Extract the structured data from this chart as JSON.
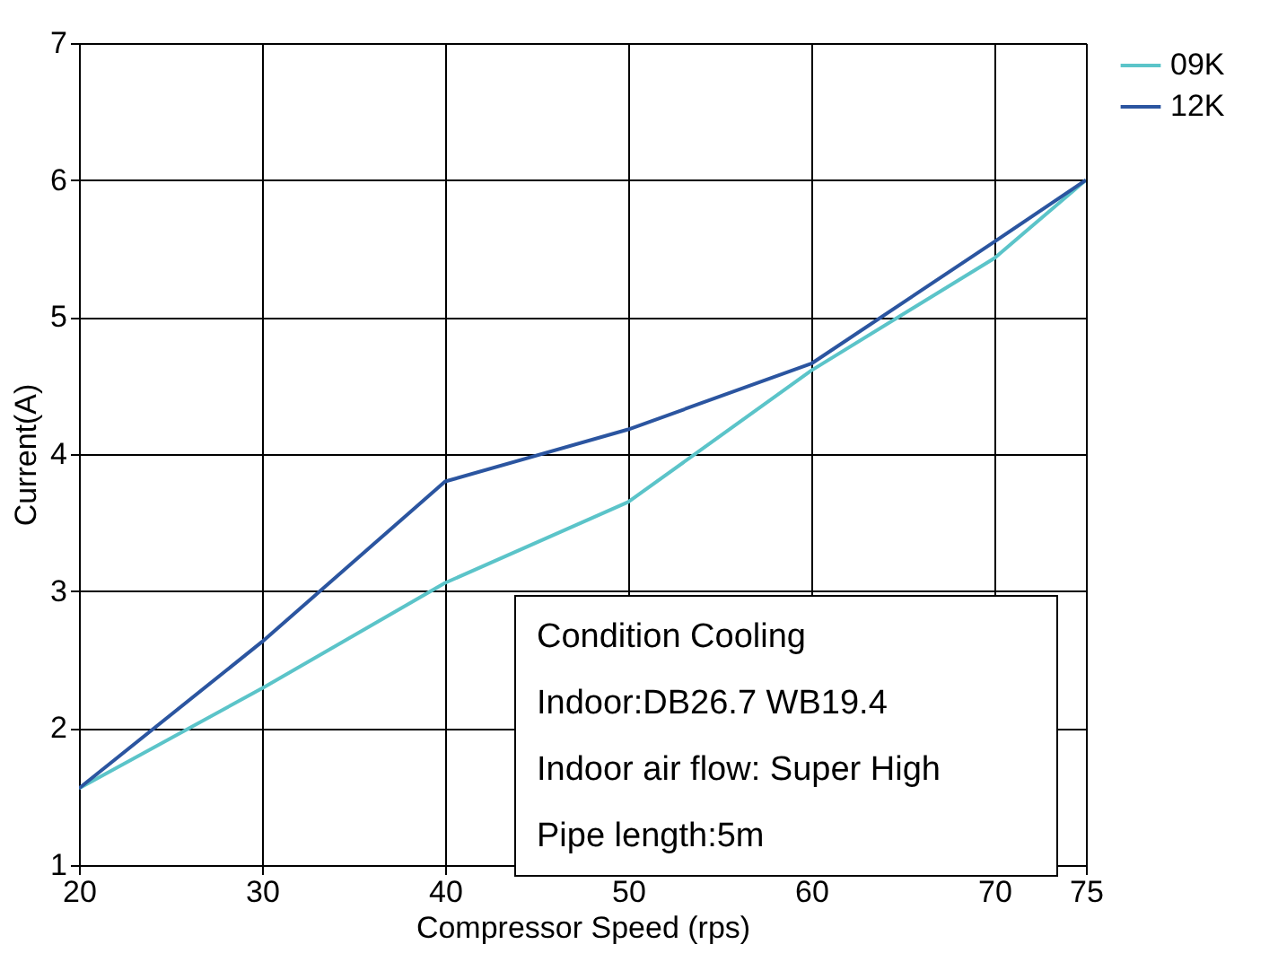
{
  "chart_data": {
    "type": "line",
    "xlabel": "Compressor Speed (rps)",
    "ylabel": "Current(A)",
    "x": [
      20,
      30,
      40,
      50,
      60,
      70,
      75
    ],
    "series": [
      {
        "name": "09K",
        "color": "#5bc4c9",
        "values": [
          1.56,
          2.29,
          3.06,
          3.65,
          4.61,
          5.43,
          6
        ]
      },
      {
        "name": "12K",
        "color": "#2b55a0",
        "values": [
          1.56,
          2.63,
          3.8,
          4.18,
          4.66,
          5.55,
          6
        ]
      }
    ],
    "xlim": [
      20,
      75
    ],
    "xticks": [
      20,
      30,
      40,
      50,
      60,
      70,
      75
    ],
    "ylim": [
      1,
      7
    ],
    "yticks": [
      1,
      2,
      3,
      4,
      5,
      6,
      7
    ],
    "grid": true,
    "legend": "right",
    "marker": "none",
    "line_style": "solid",
    "annotations": [
      "Condition Cooling",
      "Indoor:DB26.7     WB19.4",
      "Indoor air flow: Super High",
      "Pipe length:5m"
    ]
  }
}
